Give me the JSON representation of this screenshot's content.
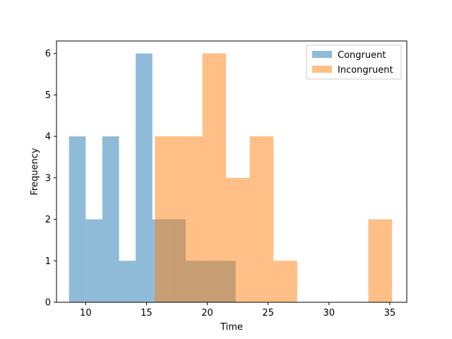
{
  "chart_data": {
    "type": "histogram",
    "title": "",
    "xlabel": "Time",
    "ylabel": "Frequency",
    "xlim": [
      7.6,
      36.4
    ],
    "ylim": [
      0,
      6.3
    ],
    "xticks": [
      10,
      15,
      20,
      25,
      30,
      35
    ],
    "yticks": [
      0,
      1,
      2,
      3,
      4,
      5,
      6
    ],
    "grid": false,
    "legend_position": "top-right",
    "series": [
      {
        "name": "Congruent",
        "color": "#1f77b4",
        "alpha": 0.5,
        "bin_edges": [
          8.63,
          10.0,
          11.37,
          12.74,
          14.11,
          15.48,
          16.85,
          18.22,
          19.59,
          20.96,
          22.33
        ],
        "counts": [
          4,
          2,
          4,
          1,
          6,
          2,
          2,
          1,
          1,
          1
        ]
      },
      {
        "name": "Incongruent",
        "color": "#ff7f0e",
        "alpha": 0.5,
        "bin_edges": [
          15.69,
          17.64,
          19.59,
          21.54,
          23.49,
          25.44,
          27.39,
          29.34,
          31.29,
          33.24,
          35.19
        ],
        "counts": [
          4,
          4,
          6,
          3,
          4,
          1,
          0,
          0,
          0,
          2
        ]
      }
    ]
  }
}
